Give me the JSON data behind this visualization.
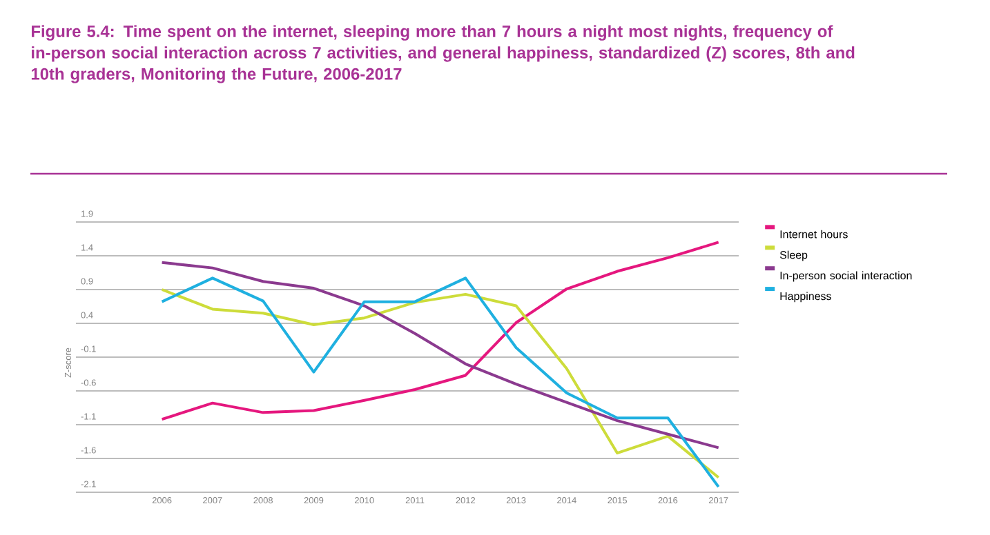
{
  "chart_data": {
    "type": "line",
    "title": "Figure 5.4: Time spent on the internet, sleeping more than 7 hours a night most nights, frequency of in-person social interaction across 7 activities, and general happiness, standardized (Z) scores, 8th and 10th graders, Monitoring the Future, 2006-2017",
    "ylabel": "Z-score",
    "x": [
      2006,
      2007,
      2008,
      2009,
      2010,
      2011,
      2012,
      2013,
      2014,
      2015,
      2016,
      2017
    ],
    "series": [
      {
        "name": "Internet hours",
        "color": "#e5177e",
        "values": [
          -1.02,
          -0.78,
          -0.92,
          -0.89,
          -0.74,
          -0.58,
          -0.37,
          0.41,
          0.91,
          1.17,
          1.37,
          1.6
        ]
      },
      {
        "name": "Sleep",
        "color": "#cddc3a",
        "values": [
          0.9,
          0.61,
          0.55,
          0.38,
          0.48,
          0.71,
          0.83,
          0.66,
          -0.27,
          -1.52,
          -1.27,
          -1.88
        ]
      },
      {
        "name": "In-person social interaction",
        "color": "#8b3a8f",
        "values": [
          1.3,
          1.22,
          1.02,
          0.92,
          0.66,
          0.25,
          -0.2,
          -0.5,
          -0.77,
          -1.04,
          -1.24,
          -1.44
        ]
      },
      {
        "name": "Happiness",
        "color": "#1fb0e0",
        "values": [
          0.72,
          1.07,
          0.73,
          -0.32,
          0.72,
          0.72,
          1.07,
          0.04,
          -0.63,
          -1.0,
          -1.0,
          -2.02
        ]
      }
    ],
    "xlim": [
      2004.3,
      2017.4
    ],
    "ylim": [
      -2.1,
      1.9
    ],
    "xticks": [
      2006,
      2007,
      2008,
      2009,
      2010,
      2011,
      2012,
      2013,
      2014,
      2015,
      2016,
      2017
    ],
    "yticks": [
      -2.1,
      -1.6,
      -1.1,
      -0.6,
      -0.1,
      0.4,
      0.9,
      1.4,
      1.9
    ],
    "grid": "y",
    "legend": "right",
    "marker": "none",
    "line_style": "solid"
  }
}
